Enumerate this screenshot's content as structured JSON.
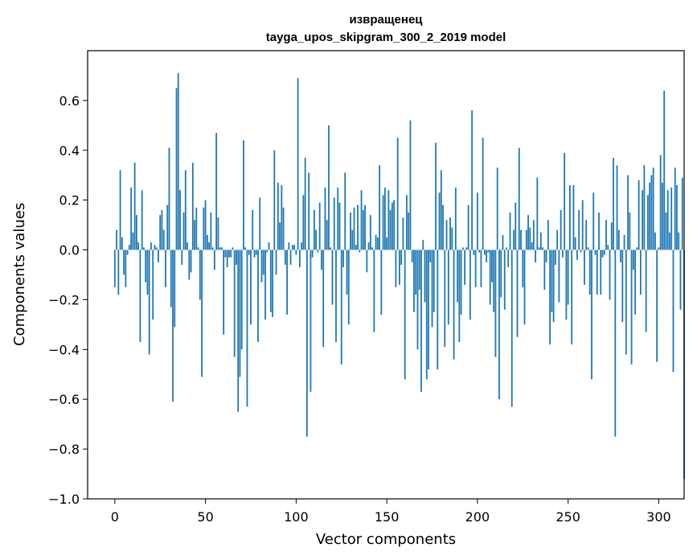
{
  "chart_data": {
    "type": "bar",
    "title_line1": "извращенец",
    "title_line2": "tayga_upos_skipgram_300_2_2019 model",
    "xlabel": "Vector components",
    "ylabel": "Components values",
    "xlim": [
      -15,
      314
    ],
    "ylim": [
      -1.0,
      0.8
    ],
    "x_ticks": [
      0,
      50,
      100,
      150,
      200,
      250,
      300
    ],
    "x_tick_labels": [
      "0",
      "50",
      "100",
      "150",
      "200",
      "250",
      "300"
    ],
    "y_ticks": [
      -1.0,
      -0.8,
      -0.6,
      -0.4,
      -0.2,
      0.0,
      0.2,
      0.4,
      0.6
    ],
    "y_tick_labels": [
      "−1.0",
      "−0.8",
      "−0.6",
      "−0.4",
      "−0.2",
      "0.0",
      "0.2",
      "0.4",
      "0.6"
    ],
    "bar_color": "#1f77b4",
    "values": [
      -0.15,
      0.08,
      -0.18,
      0.32,
      0.05,
      -0.1,
      -0.15,
      -0.02,
      0.02,
      0.25,
      0.07,
      0.35,
      0.14,
      0.03,
      -0.37,
      0.24,
      0.01,
      -0.13,
      -0.18,
      -0.42,
      0.03,
      -0.28,
      0.02,
      0.01,
      -0.05,
      0.14,
      0.16,
      0.08,
      -0.15,
      0.18,
      0.41,
      -0.23,
      -0.61,
      -0.31,
      0.65,
      0.71,
      0.24,
      -0.06,
      0.15,
      0.32,
      0.03,
      -0.12,
      -0.09,
      0.35,
      0.12,
      0.17,
      0.01,
      -0.2,
      -0.51,
      0.17,
      0.2,
      0.06,
      0.03,
      0.15,
      0.01,
      -0.08,
      0.47,
      0.13,
      0.01,
      0.01,
      -0.34,
      -0.03,
      -0.07,
      -0.03,
      -0.03,
      0.01,
      -0.43,
      -0.06,
      -0.65,
      -0.51,
      -0.4,
      0.44,
      0.01,
      -0.63,
      -0.02,
      -0.3,
      0.16,
      -0.03,
      -0.02,
      -0.37,
      0.21,
      -0.13,
      -0.1,
      -0.28,
      -0.01,
      0.03,
      -0.25,
      -0.27,
      0.4,
      -0.1,
      0.27,
      0.11,
      0.26,
      0.17,
      -0.06,
      -0.26,
      0.03,
      -0.06,
      0.02,
      0.02,
      -0.02,
      0.69,
      -0.07,
      0.03,
      0.22,
      0.37,
      -0.75,
      0.31,
      -0.57,
      -0.03,
      0.16,
      0.08,
      -0.01,
      0.19,
      -0.08,
      -0.39,
      0.25,
      0.12,
      0.5,
      0.01,
      -0.22,
      0.21,
      -0.37,
      0.25,
      0.19,
      -0.46,
      -0.07,
      0.31,
      -0.18,
      -0.3,
      0.15,
      0.08,
      0.17,
      0.02,
      0.18,
      -0.01,
      0.24,
      0.16,
      0.18,
      -0.09,
      0.03,
      0.14,
      0.01,
      -0.33,
      0.06,
      0.05,
      0.34,
      -0.26,
      0.22,
      0.25,
      0.05,
      0.24,
      0.16,
      0.19,
      0.2,
      -0.15,
      0.45,
      -0.14,
      -0.06,
      0.13,
      -0.52,
      0.22,
      0.15,
      0.52,
      -0.05,
      -0.25,
      -0.18,
      -0.4,
      -0.16,
      -0.57,
      0.04,
      -0.21,
      -0.52,
      -0.48,
      -0.05,
      -0.31,
      -0.25,
      0.43,
      -0.48,
      0.23,
      0.32,
      0.18,
      -0.39,
      0.12,
      -0.3,
      0.13,
      0.09,
      -0.44,
      0.25,
      -0.21,
      -0.37,
      -0.26,
      0.01,
      -0.14,
      0.01,
      0.18,
      -0.28,
      0.56,
      -0.02,
      -0.15,
      0.23,
      -0.01,
      -0.15,
      0.45,
      -0.02,
      -0.05,
      -0.01,
      -0.22,
      -0.13,
      -0.25,
      -0.43,
      0.33,
      -0.6,
      -0.19,
      0.06,
      -0.24,
      0.01,
      -0.07,
      0.15,
      -0.63,
      0.08,
      0.19,
      -0.35,
      0.41,
      0.08,
      -0.15,
      -0.3,
      0.08,
      0.14,
      0.09,
      0.03,
      0.12,
      -0.05,
      0.29,
      0.01,
      0.07,
      0.01,
      -0.16,
      -0.05,
      0.12,
      -0.38,
      -0.25,
      -0.29,
      -0.06,
      0.08,
      -0.21,
      0.16,
      -0.03,
      0.39,
      -0.28,
      -0.22,
      0.26,
      -0.38,
      0.26,
      0.05,
      -0.04,
      0.16,
      -0.01,
      0.2,
      -0.14,
      0.12,
      0.01,
      -0.18,
      -0.52,
      0.23,
      -0.02,
      -0.18,
      0.15,
      -0.18,
      -0.03,
      -0.02,
      0.12,
      0.02,
      -0.2,
      0.11,
      0.37,
      -0.75,
      0.34,
      0.08,
      -0.05,
      -0.29,
      0.06,
      -0.42,
      0.3,
      0.15,
      -0.46,
      -0.08,
      -0.26,
      0.01,
      0.28,
      -0.18,
      0.24,
      0.34,
      -0.33,
      0.22,
      0.27,
      0.3,
      0.33,
      0.07,
      -0.45,
      0.01,
      0.38,
      0.27,
      0.64,
      0.15,
      0.24,
      0.07,
      0.25,
      -0.49,
      0.33,
      0.26,
      0.07,
      -0.24,
      0.29,
      -0.92
    ]
  }
}
